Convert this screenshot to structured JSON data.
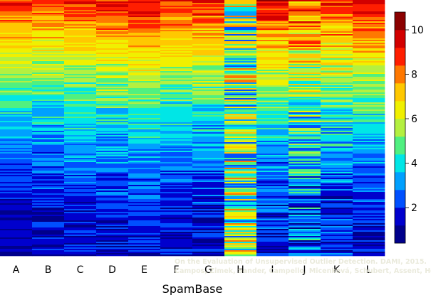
{
  "chart_data": {
    "type": "heatmap",
    "title": "",
    "xlabel": "SpamBase",
    "ylabel": "",
    "categories": [
      "A",
      "B",
      "C",
      "D",
      "E",
      "F",
      "G",
      "H",
      "I",
      "J",
      "K",
      "L"
    ],
    "colorbar": {
      "ticks": [
        "2",
        "4",
        "6",
        "8",
        "10"
      ],
      "tick_values": [
        2,
        4,
        6,
        8,
        10
      ],
      "range": [
        0.4,
        10.8
      ],
      "colors": [
        "#00008b",
        "#0000cd",
        "#0050ff",
        "#00a0ff",
        "#00e6e6",
        "#50f080",
        "#b4f040",
        "#f0f000",
        "#ffc800",
        "#ff7800",
        "#ff1e00",
        "#d20000",
        "#8b0000"
      ]
    },
    "rows_sorted_by": "column mean (descending, top to bottom)",
    "column_mean_top": [
      9.0,
      8.6,
      8.8,
      9.2,
      9.6,
      9.0,
      9.1,
      5.0,
      9.3,
      8.4,
      8.9,
      9.6
    ],
    "column_mean_bottom": [
      1.2,
      1.3,
      1.6,
      1.5,
      1.7,
      1.5,
      1.4,
      5.0,
      1.7,
      2.5,
      1.8,
      1.6
    ],
    "column_noise": [
      0.7,
      0.9,
      0.9,
      1.0,
      0.8,
      0.9,
      1.0,
      3.0,
      1.0,
      2.0,
      1.3,
      0.9
    ]
  },
  "watermark": {
    "line1": "On the Evaluation of Unsupervised Outlier Detection. DAMI, 2015.",
    "line2": "Campos, Zimek, Sander, Campello, Micenková, Schubert, Assent, Houle"
  }
}
